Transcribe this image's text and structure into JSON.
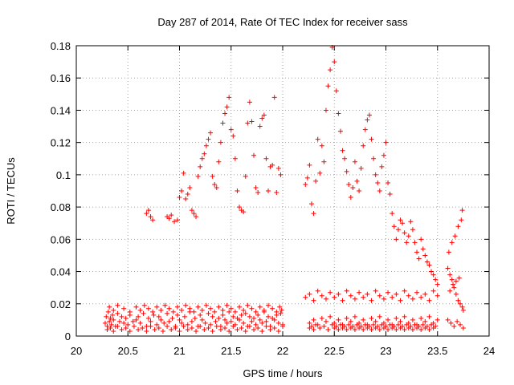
{
  "chart_data": {
    "type": "scatter",
    "title": "Day 287 of 2014, Rate Of TEC Index for receiver sass",
    "xlabel": "GPS time / hours",
    "ylabel": "ROTI / TECUs",
    "xlim": [
      20,
      24
    ],
    "ylim": [
      0,
      0.18
    ],
    "xticks": [
      20,
      20.5,
      21,
      21.5,
      22,
      22.5,
      23,
      23.5,
      24
    ],
    "xtick_labels": [
      "20",
      "20.5",
      "21",
      "21.5",
      "22",
      "22.5",
      "23",
      "23.5",
      "24"
    ],
    "yticks": [
      0,
      0.02,
      0.04,
      0.06,
      0.08,
      0.1,
      0.12,
      0.14,
      0.16,
      0.18
    ],
    "ytick_labels": [
      "0",
      "0.02",
      "0.04",
      "0.06",
      "0.08",
      "0.1",
      "0.12",
      "0.14",
      "0.16",
      "0.18"
    ],
    "grid": true,
    "marker": "+",
    "color": "#ff0000",
    "series": [
      {
        "name": "ROTI",
        "x": [
          20.28,
          20.29,
          20.3,
          20.31,
          20.32,
          20.33,
          20.34,
          20.35,
          20.36,
          20.38,
          20.4,
          20.42,
          20.44,
          20.46,
          20.48,
          20.5,
          20.52,
          20.55,
          20.58,
          20.6,
          20.62,
          20.65,
          20.68,
          20.7,
          20.72,
          20.75,
          20.78,
          20.8,
          20.82,
          20.85,
          20.88,
          20.9,
          20.93,
          20.96,
          20.98,
          21.0,
          21.02,
          21.05,
          21.08,
          21.1,
          21.12,
          21.15,
          21.18,
          21.2,
          21.22,
          21.25,
          21.28,
          21.3,
          21.32,
          21.35,
          21.38,
          21.4,
          21.42,
          21.44,
          21.46,
          21.48,
          21.5,
          21.52,
          21.54,
          21.56,
          21.58,
          21.6,
          21.62,
          21.64,
          21.66,
          21.68,
          21.7,
          21.72,
          21.74,
          21.76,
          21.78,
          21.8,
          21.82,
          21.84,
          21.86,
          21.88,
          21.9,
          21.92,
          21.94,
          21.96,
          21.98,
          22.0,
          20.3,
          20.33,
          20.36,
          20.4,
          20.44,
          20.48,
          20.52,
          20.56,
          20.6,
          20.64,
          20.68,
          20.72,
          20.76,
          20.8,
          20.84,
          20.88,
          20.92,
          20.96,
          21.0,
          21.04,
          21.08,
          21.12,
          21.16,
          21.2,
          21.24,
          21.28,
          21.32,
          21.36,
          21.4,
          21.44,
          21.48,
          21.52,
          21.56,
          21.6,
          21.64,
          21.68,
          21.72,
          21.76,
          21.8,
          21.84,
          21.88,
          21.92,
          21.96,
          22.0,
          20.32,
          20.36,
          20.4,
          20.46,
          20.52,
          20.58,
          20.62,
          20.66,
          20.7,
          20.74,
          20.78,
          20.82,
          20.86,
          20.9,
          20.94,
          20.98,
          21.02,
          21.06,
          21.1,
          21.14,
          21.18,
          21.22,
          21.26,
          21.3,
          21.34,
          21.38,
          21.42,
          21.46,
          21.5,
          21.54,
          21.58,
          21.62,
          21.66,
          21.7,
          21.74,
          21.78,
          21.82,
          21.86,
          21.9,
          21.94,
          21.97,
          21.99,
          20.68,
          20.7,
          20.72,
          20.74,
          20.88,
          20.9,
          20.92,
          20.95,
          20.98,
          21.0,
          21.02,
          21.04,
          21.06,
          21.08,
          21.1,
          21.12,
          21.14,
          21.16,
          21.18,
          21.2,
          21.22,
          21.24,
          21.26,
          21.28,
          21.3,
          21.32,
          21.34,
          21.36,
          21.38,
          21.4,
          21.42,
          21.44,
          21.46,
          21.48,
          21.5,
          21.52,
          21.54,
          21.56,
          21.58,
          21.6,
          21.62,
          21.64,
          21.66,
          21.68,
          21.7,
          21.72,
          21.74,
          21.76,
          21.78,
          21.8,
          21.82,
          21.84,
          21.86,
          21.88,
          21.9,
          21.92,
          21.94,
          21.96,
          21.98,
          22.22,
          22.24,
          22.26,
          22.28,
          22.3,
          22.32,
          22.34,
          22.36,
          22.38,
          22.4,
          22.42,
          22.44,
          22.46,
          22.48,
          22.5,
          22.52,
          22.54,
          22.56,
          22.58,
          22.6,
          22.62,
          22.64,
          22.66,
          22.68,
          22.7,
          22.72,
          22.74,
          22.76,
          22.78,
          22.8,
          22.82,
          22.84,
          22.86,
          22.88,
          22.9,
          22.92,
          22.94,
          22.96,
          22.98,
          23.0,
          23.02,
          23.04,
          23.06,
          23.08,
          23.1,
          23.12,
          23.14,
          23.16,
          23.18,
          23.2,
          23.22,
          23.24,
          23.26,
          23.28,
          23.3,
          23.32,
          23.34,
          23.36,
          23.38,
          23.4,
          23.42,
          23.44,
          23.46,
          23.48,
          23.5,
          22.22,
          22.26,
          22.3,
          22.34,
          22.38,
          22.42,
          22.46,
          22.5,
          22.54,
          22.58,
          22.62,
          22.66,
          22.7,
          22.74,
          22.78,
          22.82,
          22.86,
          22.9,
          22.94,
          22.98,
          23.02,
          23.06,
          23.1,
          23.14,
          23.18,
          23.22,
          23.26,
          23.3,
          23.34,
          23.38,
          23.42,
          23.46,
          23.5,
          22.26,
          22.3,
          22.34,
          22.38,
          22.42,
          22.46,
          22.5,
          22.54,
          22.58,
          22.62,
          22.66,
          22.7,
          22.74,
          22.78,
          22.82,
          22.86,
          22.9,
          22.94,
          22.98,
          23.02,
          23.06,
          23.1,
          23.14,
          23.18,
          23.22,
          23.26,
          23.3,
          23.34,
          23.38,
          23.42,
          23.46,
          23.5,
          22.26,
          22.28,
          22.3,
          22.32,
          22.36,
          22.4,
          22.44,
          22.48,
          22.5,
          22.52,
          22.54,
          22.56,
          22.58,
          22.6,
          22.62,
          22.64,
          22.66,
          22.68,
          22.7,
          22.72,
          22.74,
          22.76,
          22.78,
          22.8,
          22.82,
          22.84,
          22.86,
          22.88,
          22.9,
          22.92,
          22.94,
          22.96,
          22.98,
          23.0,
          23.02,
          23.04,
          23.06,
          23.08,
          23.1,
          23.12,
          23.14,
          23.16,
          23.18,
          23.2,
          23.22,
          23.24,
          23.26,
          23.28,
          23.3,
          23.32,
          23.34,
          23.36,
          23.38,
          23.4,
          23.42,
          23.44,
          23.46,
          23.48,
          23.6,
          23.62,
          23.64,
          23.66,
          23.68,
          23.7,
          23.72,
          23.74,
          23.75,
          23.6,
          23.63,
          23.66,
          23.69,
          23.72,
          23.75,
          23.61,
          23.64,
          23.67,
          23.7,
          23.73,
          23.62,
          23.65,
          23.68,
          23.71,
          23.74
        ],
        "y": [
          0.008,
          0.012,
          0.006,
          0.015,
          0.009,
          0.011,
          0.007,
          0.013,
          0.01,
          0.006,
          0.014,
          0.009,
          0.012,
          0.008,
          0.011,
          0.007,
          0.013,
          0.009,
          0.01,
          0.012,
          0.008,
          0.014,
          0.006,
          0.011,
          0.009,
          0.013,
          0.007,
          0.012,
          0.01,
          0.008,
          0.014,
          0.009,
          0.011,
          0.006,
          0.013,
          0.01,
          0.008,
          0.012,
          0.007,
          0.015,
          0.009,
          0.011,
          0.006,
          0.013,
          0.01,
          0.008,
          0.014,
          0.007,
          0.012,
          0.009,
          0.011,
          0.006,
          0.013,
          0.01,
          0.008,
          0.015,
          0.009,
          0.012,
          0.007,
          0.011,
          0.01,
          0.013,
          0.008,
          0.014,
          0.006,
          0.012,
          0.009,
          0.011,
          0.007,
          0.013,
          0.01,
          0.008,
          0.015,
          0.009,
          0.012,
          0.006,
          0.011,
          0.01,
          0.013,
          0.008,
          0.014,
          0.007,
          0.004,
          0.005,
          0.003,
          0.006,
          0.004,
          0.005,
          0.003,
          0.006,
          0.004,
          0.005,
          0.003,
          0.006,
          0.004,
          0.005,
          0.003,
          0.006,
          0.004,
          0.005,
          0.003,
          0.006,
          0.004,
          0.005,
          0.003,
          0.006,
          0.004,
          0.005,
          0.003,
          0.006,
          0.004,
          0.005,
          0.003,
          0.006,
          0.004,
          0.005,
          0.003,
          0.006,
          0.004,
          0.005,
          0.003,
          0.006,
          0.004,
          0.005,
          0.003,
          0.006,
          0.018,
          0.016,
          0.019,
          0.017,
          0.015,
          0.018,
          0.016,
          0.019,
          0.017,
          0.015,
          0.018,
          0.016,
          0.019,
          0.017,
          0.015,
          0.018,
          0.016,
          0.019,
          0.017,
          0.015,
          0.018,
          0.016,
          0.019,
          0.017,
          0.015,
          0.018,
          0.016,
          0.019,
          0.017,
          0.015,
          0.018,
          0.016,
          0.019,
          0.017,
          0.015,
          0.018,
          0.016,
          0.019,
          0.017,
          0.015,
          0.018,
          0.016,
          0.076,
          0.078,
          0.074,
          0.072,
          0.074,
          0.073,
          0.075,
          0.071,
          0.072,
          0.086,
          0.09,
          0.101,
          0.085,
          0.088,
          0.092,
          0.078,
          0.076,
          0.074,
          0.099,
          0.105,
          0.11,
          0.113,
          0.118,
          0.122,
          0.126,
          0.099,
          0.094,
          0.092,
          0.108,
          0.12,
          0.132,
          0.138,
          0.142,
          0.148,
          0.128,
          0.124,
          0.11,
          0.09,
          0.08,
          0.078,
          0.077,
          0.099,
          0.132,
          0.145,
          0.133,
          0.112,
          0.092,
          0.089,
          0.13,
          0.135,
          0.137,
          0.11,
          0.09,
          0.105,
          0.106,
          0.148,
          0.089,
          0.104,
          0.1,
          0.094,
          0.098,
          0.106,
          0.082,
          0.076,
          0.096,
          0.122,
          0.101,
          0.118,
          0.108,
          0.14,
          0.155,
          0.165,
          0.179,
          0.17,
          0.152,
          0.138,
          0.127,
          0.115,
          0.11,
          0.102,
          0.094,
          0.086,
          0.092,
          0.108,
          0.096,
          0.09,
          0.104,
          0.118,
          0.128,
          0.134,
          0.137,
          0.122,
          0.11,
          0.1,
          0.095,
          0.09,
          0.105,
          0.112,
          0.12,
          0.095,
          0.088,
          0.076,
          0.068,
          0.06,
          0.066,
          0.072,
          0.07,
          0.064,
          0.058,
          0.062,
          0.071,
          0.066,
          0.058,
          0.052,
          0.048,
          0.06,
          0.054,
          0.05,
          0.046,
          0.044,
          0.04,
          0.038,
          0.035,
          0.032,
          0.024,
          0.026,
          0.022,
          0.028,
          0.025,
          0.023,
          0.027,
          0.024,
          0.026,
          0.022,
          0.028,
          0.025,
          0.023,
          0.027,
          0.024,
          0.026,
          0.022,
          0.028,
          0.025,
          0.023,
          0.027,
          0.024,
          0.026,
          0.022,
          0.028,
          0.025,
          0.023,
          0.027,
          0.024,
          0.026,
          0.022,
          0.028,
          0.025,
          0.008,
          0.01,
          0.007,
          0.011,
          0.009,
          0.012,
          0.008,
          0.01,
          0.007,
          0.011,
          0.009,
          0.012,
          0.008,
          0.01,
          0.007,
          0.011,
          0.009,
          0.012,
          0.008,
          0.01,
          0.007,
          0.011,
          0.009,
          0.012,
          0.008,
          0.01,
          0.007,
          0.011,
          0.009,
          0.012,
          0.008,
          0.01,
          0.005,
          0.006,
          0.004,
          0.007,
          0.005,
          0.006,
          0.004,
          0.007,
          0.005,
          0.006,
          0.004,
          0.007,
          0.005,
          0.006,
          0.004,
          0.007,
          0.005,
          0.006,
          0.004,
          0.007,
          0.005,
          0.006,
          0.004,
          0.007,
          0.005,
          0.006,
          0.004,
          0.007,
          0.005,
          0.006,
          0.004,
          0.007,
          0.005,
          0.006,
          0.004,
          0.007,
          0.005,
          0.006,
          0.004,
          0.007,
          0.005,
          0.006,
          0.004,
          0.007,
          0.005,
          0.006,
          0.004,
          0.007,
          0.005,
          0.006,
          0.004,
          0.007,
          0.005,
          0.006,
          0.004,
          0.007,
          0.005,
          0.006,
          0.042,
          0.038,
          0.035,
          0.03,
          0.026,
          0.022,
          0.02,
          0.018,
          0.016,
          0.01,
          0.008,
          0.006,
          0.009,
          0.007,
          0.005,
          0.052,
          0.058,
          0.062,
          0.068,
          0.072,
          0.028,
          0.032,
          0.034,
          0.036,
          0.078
        ]
      }
    ]
  }
}
